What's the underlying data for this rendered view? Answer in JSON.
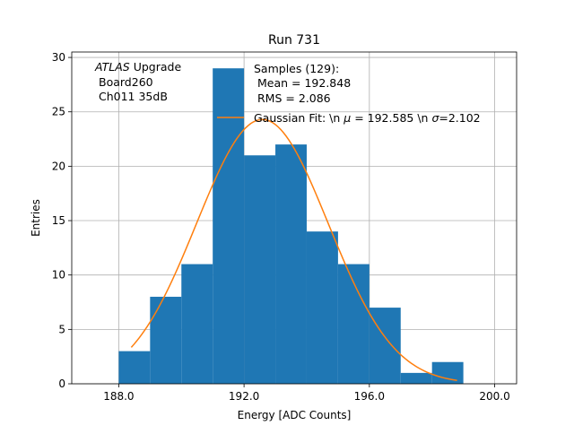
{
  "chart_data": {
    "type": "bar",
    "title": "Run 731",
    "xlabel": "Energy [ADC Counts]",
    "ylabel": "Entries",
    "xlim": [
      186.5,
      200.7
    ],
    "ylim": [
      0,
      30.5
    ],
    "xticks": [
      188.0,
      192.0,
      196.0,
      200.0
    ],
    "xtick_labels": [
      "188.0",
      "192.0",
      "196.0",
      "200.0"
    ],
    "yticks": [
      0,
      5,
      10,
      15,
      20,
      25,
      30
    ],
    "ytick_labels": [
      "0",
      "5",
      "10",
      "15",
      "20",
      "25",
      "30"
    ],
    "grid": true,
    "bin_edges": [
      188,
      189,
      190,
      191,
      192,
      193,
      194,
      195,
      196,
      197,
      198,
      199
    ],
    "values": [
      3,
      8,
      11,
      29,
      21,
      22,
      14,
      11,
      7,
      1,
      2
    ],
    "bar_color": "#1f77b4",
    "fit": {
      "label": "Gaussian Fit: \\n $\\mu$ = 192.585 \\n $\\sigma$=2.102",
      "label_prefix": "Gaussian Fit: \\n ",
      "label_mu": "μ",
      "label_mu_value": " = 192.585 \\n ",
      "label_sigma": "σ",
      "label_sigma_value": "=2.102",
      "mu": 192.585,
      "sigma": 2.102,
      "amplitude": 24.3,
      "x_range": [
        188.4,
        198.8
      ],
      "color": "#ff7f0e"
    },
    "legend_lines": [
      "Samples (129):",
      "Mean = 192.848",
      "RMS = 2.086"
    ],
    "annotation": {
      "italic": "ATLAS",
      "rest": " Upgrade",
      "line2": "Board260",
      "line3": "Ch011 35dB"
    }
  }
}
